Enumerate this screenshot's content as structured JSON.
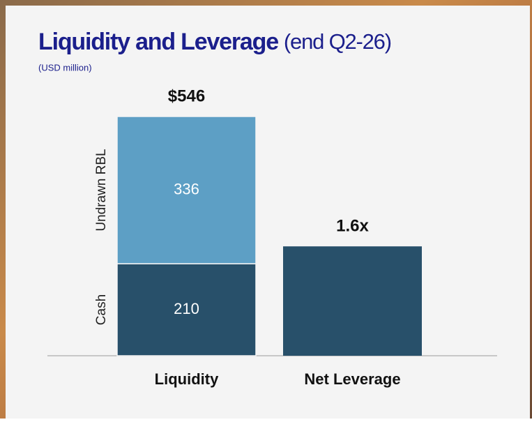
{
  "title": "Liquidity and Leverage",
  "subtitle": "(end Q2-26)",
  "note": "(USD million)",
  "chart_data": [
    {
      "type": "stacked_bar",
      "categories": [
        "Liquidity"
      ],
      "series": [
        {
          "name": "Cash",
          "color": "#28506a",
          "values": [
            210
          ]
        },
        {
          "name": "Undrawn RBL",
          "color": "#5d9fc5",
          "values": [
            336
          ]
        }
      ],
      "totals": [
        546
      ],
      "total_labels": [
        "$546"
      ],
      "ylim": [
        0,
        546
      ]
    },
    {
      "type": "bar",
      "categories": [
        "Net Leverage"
      ],
      "values": [
        1.6
      ],
      "value_labels": [
        "1.6x"
      ],
      "color": "#28506a",
      "ylim": [
        0,
        3.5
      ]
    }
  ]
}
